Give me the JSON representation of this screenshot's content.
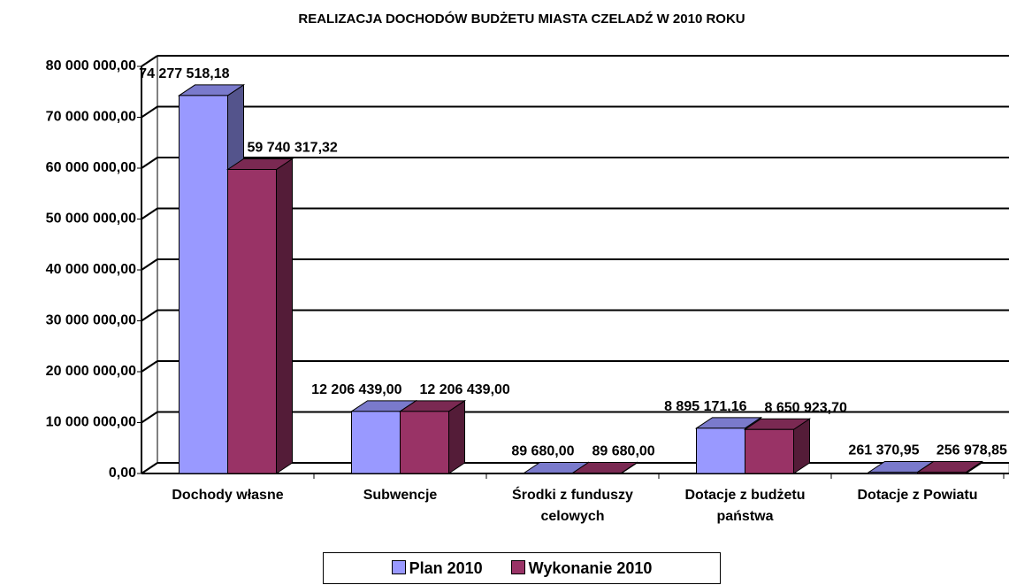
{
  "chart_data": {
    "type": "bar3d",
    "title": "REALIZACJA DOCHODÓW BUDŻETU MIASTA CZELADŹ W 2010 ROKU",
    "categories": [
      "Dochody własne",
      "Subwencje",
      "Środki z funduszy celowych",
      "Dotacje z budżetu państwa",
      "Dotacje z Powiatu"
    ],
    "series": [
      {
        "name": "Plan 2010",
        "color": "#9999ff",
        "values": [
          74277518.18,
          12206439.0,
          89680.0,
          8895171.16,
          261370.95
        ],
        "value_labels": [
          "74 277 518,18",
          "12 206 439,00",
          "89 680,00",
          "8 895 171,16",
          "261 370,95"
        ]
      },
      {
        "name": "Wykonanie 2010",
        "color": "#993366",
        "values": [
          59740317.32,
          12206439.0,
          89680.0,
          8650923.7,
          256978.85
        ],
        "value_labels": [
          "59 740 317,32",
          "12 206 439,00",
          "89 680,00",
          "8 650 923,70",
          "256 978,85"
        ]
      }
    ],
    "ylim": [
      0,
      80000000
    ],
    "yticks": [
      {
        "value": 0,
        "label": "0,00"
      },
      {
        "value": 10000000,
        "label": "10 000 000,00"
      },
      {
        "value": 20000000,
        "label": "20 000 000,00"
      },
      {
        "value": 30000000,
        "label": "30 000 000,00"
      },
      {
        "value": 40000000,
        "label": "40 000 000,00"
      },
      {
        "value": 50000000,
        "label": "50 000 000,00"
      },
      {
        "value": 60000000,
        "label": "60 000 000,00"
      },
      {
        "value": 70000000,
        "label": "70 000 000,00"
      },
      {
        "value": 80000000,
        "label": "80 000 000,00"
      }
    ],
    "grid": true,
    "legend": "bottom"
  }
}
